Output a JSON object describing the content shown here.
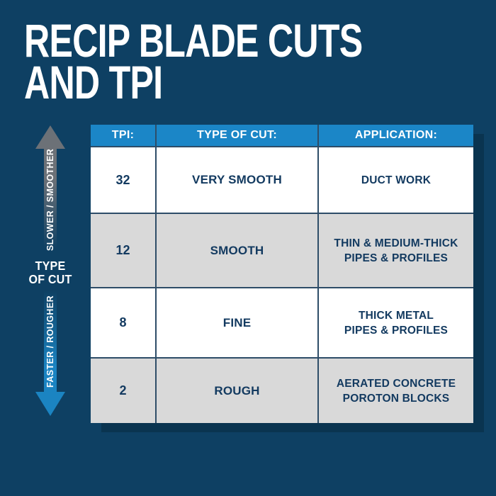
{
  "title": {
    "line1": "RECIP BLADE CUTS",
    "line2": "AND TPI"
  },
  "axis": {
    "top_arrow_label": "SLOWER / SMOOTHER",
    "bottom_arrow_label": "FASTER / ROUGHER",
    "center_label": "TYPE\nOF CUT"
  },
  "table": {
    "headers": [
      "TPI:",
      "TYPE OF CUT:",
      "APPLICATION:"
    ],
    "rows": [
      {
        "tpi": "32",
        "cut": "VERY SMOOTH",
        "application": "DUCT WORK"
      },
      {
        "tpi": "12",
        "cut": "SMOOTH",
        "application": "THIN & MEDIUM-THICK\nPIPES & PROFILES"
      },
      {
        "tpi": "8",
        "cut": "FINE",
        "application": "THICK METAL\nPIPES & PROFILES"
      },
      {
        "tpi": "2",
        "cut": "ROUGH",
        "application": "AERATED CONCRETE\nPOROTON BLOCKS"
      }
    ]
  },
  "colors": {
    "background_navy": "#0e4063",
    "header_blue": "#1b86c7",
    "row_gray": "#d9d9d9",
    "row_white": "#ffffff",
    "table_text_navy": "#133a60",
    "arrow_gray": "#6c7177",
    "arrow_blue": "#1b84c2",
    "table_shadow": "#0a3450",
    "grid_line": "#2e4d68"
  },
  "chart_data": {
    "type": "table",
    "title": "RECIP BLADE CUTS AND TPI",
    "columns": [
      "TPI:",
      "TYPE OF CUT:",
      "APPLICATION:"
    ],
    "rows": [
      [
        "32",
        "VERY SMOOTH",
        "DUCT WORK"
      ],
      [
        "12",
        "SMOOTH",
        "THIN & MEDIUM-THICK PIPES & PROFILES"
      ],
      [
        "8",
        "FINE",
        "THICK METAL PIPES & PROFILES"
      ],
      [
        "2",
        "ROUGH",
        "AERATED CONCRETE POROTON BLOCKS"
      ]
    ],
    "axis_annotation": {
      "label": "TYPE OF CUT",
      "high_tpi_direction": "SLOWER / SMOOTHER",
      "low_tpi_direction": "FASTER / ROUGHER"
    }
  }
}
